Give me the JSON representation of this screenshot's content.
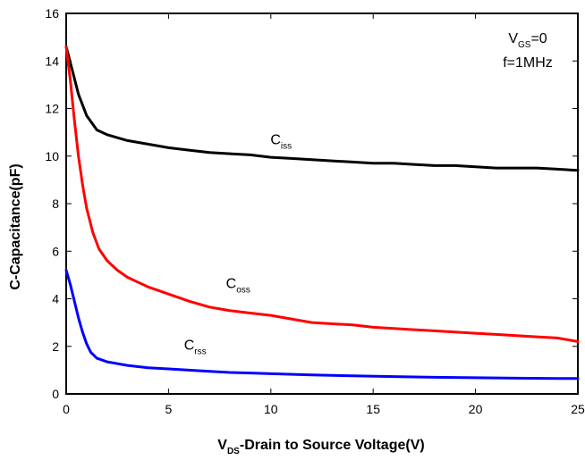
{
  "chart_data": {
    "type": "line",
    "xlabel": {
      "main": "V",
      "sub": "DS",
      "rest": "-Drain to Source Voltage(V)"
    },
    "ylabel": "C-Capacitance(pF)",
    "xlim": [
      0,
      25
    ],
    "ylim": [
      0,
      16
    ],
    "xticks": [
      0,
      5,
      10,
      15,
      20,
      25
    ],
    "yticks": [
      0,
      2,
      4,
      6,
      8,
      10,
      12,
      14,
      16
    ],
    "grid": false,
    "conditions": [
      {
        "main": "V",
        "sub": "GS",
        "rest": "=0"
      },
      {
        "main": "f=1MHz",
        "sub": "",
        "rest": ""
      }
    ],
    "series": [
      {
        "name": {
          "main": "C",
          "sub": "iss"
        },
        "color": "#000000",
        "label_at": [
          10.5,
          10.5
        ],
        "x": [
          0,
          0.3,
          0.6,
          1.0,
          1.5,
          2,
          3,
          4,
          5,
          6,
          7,
          8,
          9,
          10,
          11,
          12,
          13,
          14,
          15,
          16,
          17,
          18,
          19,
          20,
          21,
          22,
          23,
          24,
          25
        ],
        "y": [
          14.6,
          13.6,
          12.6,
          11.7,
          11.1,
          10.9,
          10.65,
          10.5,
          10.35,
          10.25,
          10.15,
          10.1,
          10.05,
          9.95,
          9.9,
          9.85,
          9.8,
          9.75,
          9.7,
          9.7,
          9.65,
          9.6,
          9.6,
          9.55,
          9.5,
          9.5,
          9.5,
          9.45,
          9.4
        ]
      },
      {
        "name": {
          "main": "C",
          "sub": "oss"
        },
        "color": "#ff0000",
        "label_at": [
          8.4,
          4.45
        ],
        "x": [
          0,
          0.2,
          0.4,
          0.6,
          0.8,
          1.0,
          1.3,
          1.6,
          2,
          2.5,
          3,
          4,
          5,
          6,
          7,
          8,
          9,
          10,
          11,
          12,
          13,
          14,
          15,
          16,
          17,
          18,
          19,
          20,
          21,
          22,
          23,
          24,
          25
        ],
        "y": [
          14.6,
          13.2,
          11.5,
          10.0,
          8.8,
          7.8,
          6.8,
          6.1,
          5.6,
          5.2,
          4.9,
          4.5,
          4.2,
          3.9,
          3.65,
          3.5,
          3.4,
          3.3,
          3.15,
          3.0,
          2.95,
          2.9,
          2.8,
          2.75,
          2.7,
          2.65,
          2.6,
          2.55,
          2.5,
          2.45,
          2.4,
          2.35,
          2.2
        ]
      },
      {
        "name": {
          "main": "C",
          "sub": "rss"
        },
        "color": "#0000ff",
        "label_at": [
          6.3,
          1.85
        ],
        "x": [
          0,
          0.2,
          0.4,
          0.6,
          0.8,
          1.0,
          1.2,
          1.5,
          2,
          3,
          4,
          5,
          6,
          7,
          8,
          9,
          10,
          12,
          14,
          16,
          18,
          20,
          22,
          24,
          25
        ],
        "y": [
          5.2,
          4.6,
          3.9,
          3.2,
          2.6,
          2.1,
          1.75,
          1.5,
          1.35,
          1.2,
          1.1,
          1.05,
          1.0,
          0.95,
          0.9,
          0.88,
          0.85,
          0.8,
          0.76,
          0.73,
          0.7,
          0.68,
          0.66,
          0.65,
          0.65
        ]
      }
    ]
  }
}
